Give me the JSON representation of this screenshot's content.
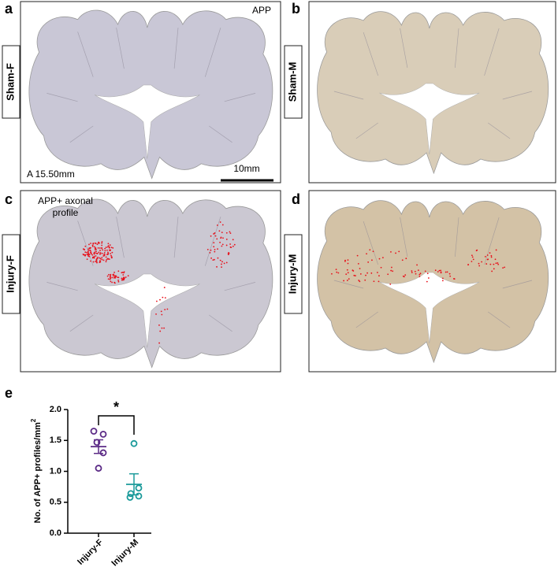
{
  "panels": [
    {
      "letter": "a",
      "label": "Sham-F",
      "stain": "APP",
      "coordinate": "A 15.50mm",
      "scale_bar": "10mm"
    },
    {
      "letter": "b",
      "label": "Sham-M"
    },
    {
      "letter": "c",
      "label": "Injury-F",
      "annotation_lines": [
        "APP+ axonal",
        "profile"
      ]
    },
    {
      "letter": "d",
      "label": "Injury-M"
    }
  ],
  "chart_data": {
    "type": "scatter",
    "letter": "e",
    "ylabel": "No. of APP+ profiles/mm",
    "ylabel_superscript": "2",
    "categories": [
      "Injury-F",
      "Injury-M"
    ],
    "values": [
      [
        1.65,
        1.6,
        1.47,
        1.3,
        1.05
      ],
      [
        1.45,
        0.73,
        0.64,
        0.58,
        0.6
      ]
    ],
    "means": [
      1.4,
      0.79
    ],
    "sem": [
      0.11,
      0.17
    ],
    "colors": [
      "#5b2a86",
      "#1a9a9a"
    ],
    "significance": "*",
    "ylim": [
      0,
      2
    ],
    "yticks": [
      {
        "value": 0,
        "label": "0.0"
      },
      {
        "value": 0.5,
        "label": "0.5"
      },
      {
        "value": 1,
        "label": "1.0"
      },
      {
        "value": 1.5,
        "label": "1.5"
      },
      {
        "value": 2,
        "label": "2.0"
      }
    ]
  }
}
